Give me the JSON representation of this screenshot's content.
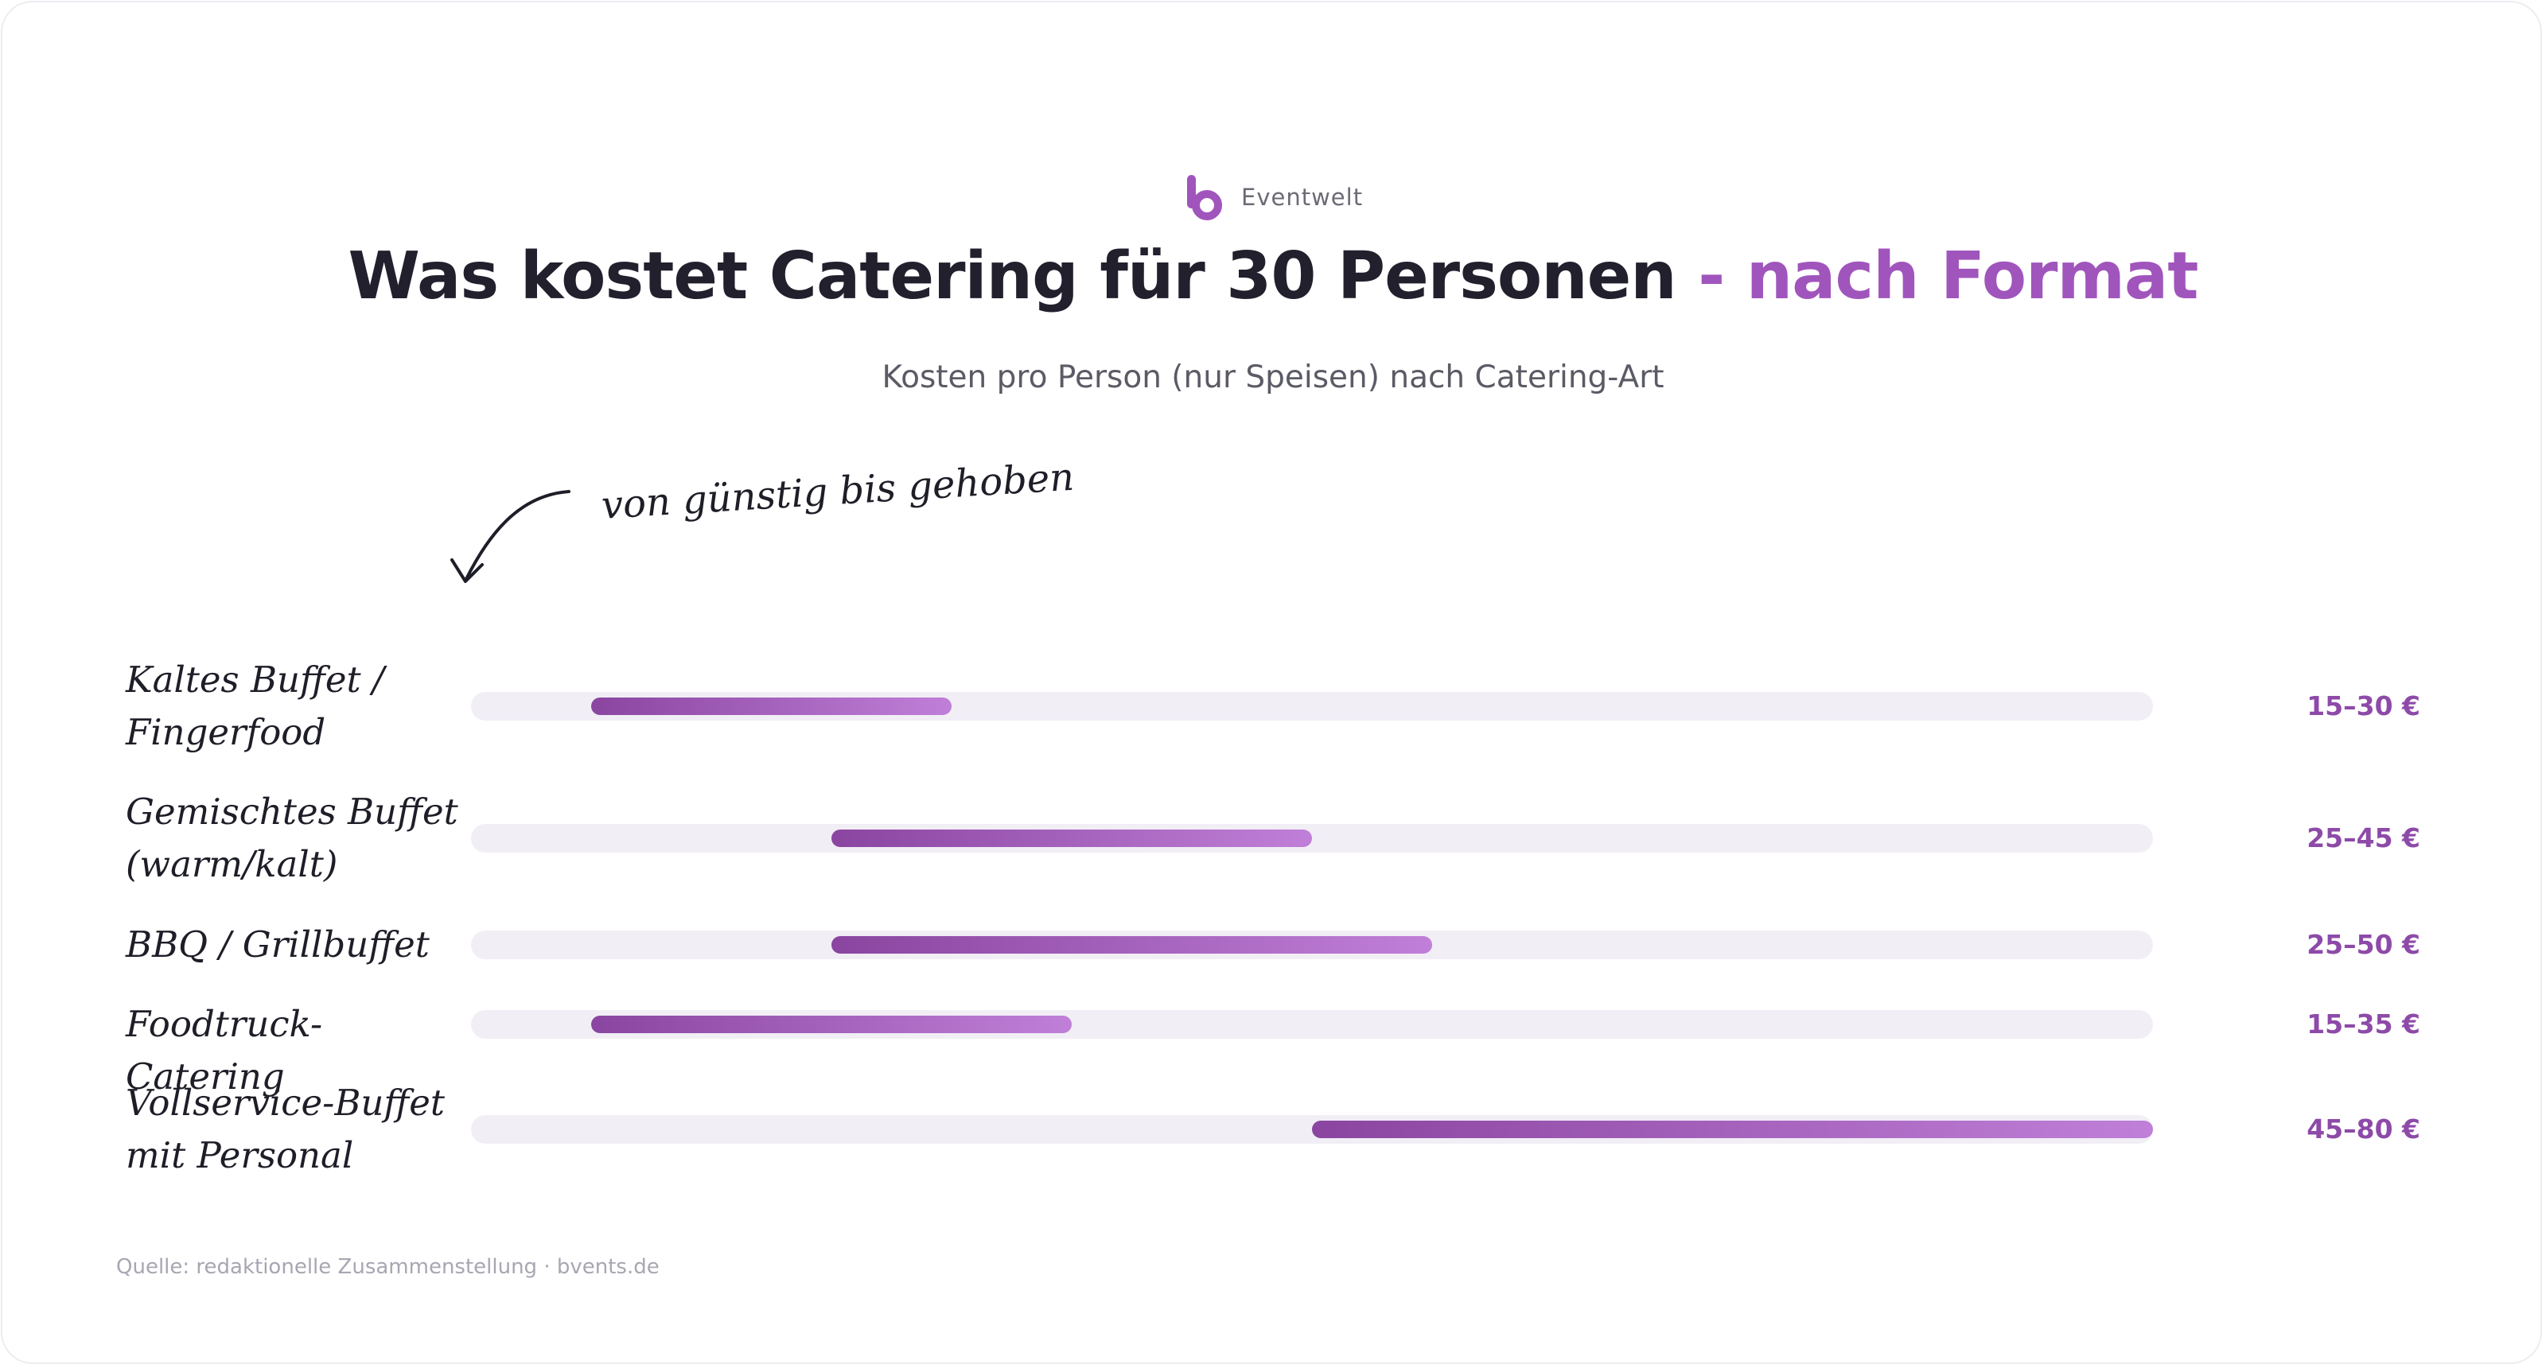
{
  "brand": {
    "name": "Eventwelt",
    "logo_icon": "b-logo-icon",
    "logo_color": "#a055bc"
  },
  "title": {
    "main": "Was kostet Catering für 30 Personen",
    "accent": " - nach Format"
  },
  "subtitle": "Kosten pro Person (nur Speisen) nach Catering-Art",
  "annotation": "von günstig bis gehoben",
  "source": "Quelle: redaktionelle Zusammenstellung · bvents.de",
  "colors": {
    "accent": "#a055bc",
    "bar_start": "#8a45a0",
    "bar_end": "#c07fd8",
    "track": "#f1eef6",
    "value_text": "#8d4aa8"
  },
  "chart_data": {
    "type": "bar",
    "orientation": "horizontal",
    "unit": "€",
    "xlim": [
      10,
      80
    ],
    "categories": [
      "Kaltes Buffet / Fingerfood",
      "Gemischtes Buffet (warm/kalt)",
      "BBQ / Grillbuffet",
      "Foodtruck-Catering",
      "Vollservice-Buffet mit Personal"
    ],
    "ranges": [
      {
        "min": 15,
        "max": 30,
        "label": "15–30 €"
      },
      {
        "min": 25,
        "max": 45,
        "label": "25–45 €"
      },
      {
        "min": 25,
        "max": 50,
        "label": "25–50 €"
      },
      {
        "min": 15,
        "max": 35,
        "label": "15–35 €"
      },
      {
        "min": 45,
        "max": 80,
        "label": "45–80 €"
      }
    ],
    "title": "Was kostet Catering für 30 Personen - nach Format",
    "subtitle": "Kosten pro Person (nur Speisen) nach Catering-Art",
    "grid": false,
    "legend": "none"
  }
}
